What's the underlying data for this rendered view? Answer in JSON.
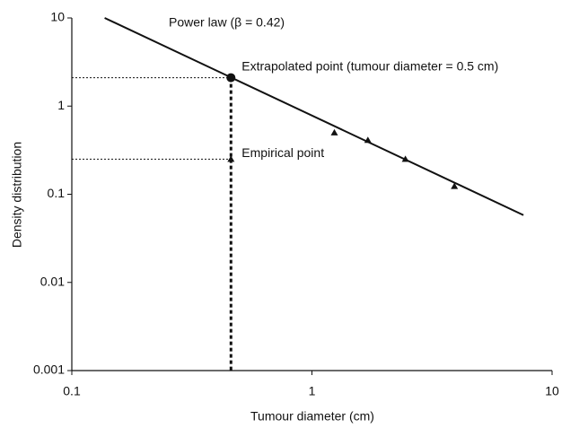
{
  "chart_data": {
    "type": "scatter",
    "xlabel": "Tumour diameter (cm)",
    "ylabel": "Density distribution",
    "xscale": "log",
    "yscale": "log",
    "xlim": [
      0.1,
      10
    ],
    "ylim": [
      0.001,
      10
    ],
    "xticks": [
      0.1,
      1,
      10
    ],
    "yticks": [
      0.001,
      0.01,
      0.1,
      1,
      10
    ],
    "power_law": {
      "label": "Power law (β = 0.42)",
      "x": [
        0.137,
        7.6
      ],
      "y": [
        10,
        0.058
      ],
      "color": "#111"
    },
    "extrapolated_point": {
      "label": "Extrapolated point (tumour diameter = 0.5 cm)",
      "x": 0.46,
      "y": 2.1,
      "color": "#111"
    },
    "empirical_point": {
      "label": "Empirical point",
      "x": 0.46,
      "y": 0.25,
      "color": "#111"
    },
    "series": [
      {
        "marker": "triangle",
        "color": "#111",
        "x": [
          1.24,
          1.71,
          2.45,
          3.92
        ],
        "y": [
          0.5,
          0.41,
          0.25,
          0.123
        ]
      }
    ]
  }
}
